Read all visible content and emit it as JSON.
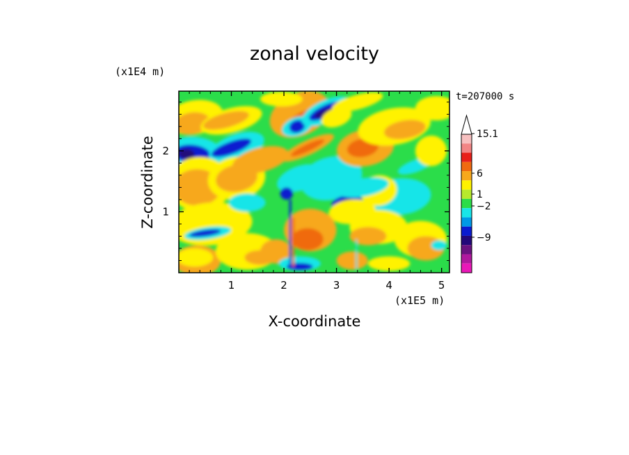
{
  "chart_data": {
    "type": "heatmap",
    "title": "zonal velocity",
    "xlabel": "X-coordinate",
    "ylabel": "Z-coordinate",
    "x_scale_label": "(x1E5 m)",
    "y_scale_label": "(x1E4 m)",
    "time_label": "t=207000 s",
    "xlim": [
      0,
      5.15
    ],
    "ylim": [
      0,
      2.98
    ],
    "x_ticks": [
      "1",
      "2",
      "3",
      "4",
      "5"
    ],
    "y_ticks": [
      "1",
      "2"
    ],
    "colorbar": {
      "labels": [
        "15.1",
        "6",
        "1",
        "−2",
        "−9"
      ],
      "levels": [
        15.1,
        6,
        1,
        -2,
        -9
      ],
      "colors": [
        "#f7c0c0",
        "#f28585",
        "#e8201a",
        "#f06a10",
        "#f7a81c",
        "#fff200",
        "#b7ea2c",
        "#2bdd4a",
        "#19e5e8",
        "#0099e6",
        "#0a1bd0",
        "#22087a",
        "#6a1280",
        "#b0189e",
        "#ea18b8"
      ],
      "extend_top_color": "#ffffff"
    },
    "field_colors": {
      "positive_strong": "#f06a10",
      "positive": "#f7a81c",
      "weak_positive": "#fff200",
      "near_zero": "#2bdd4a",
      "weak_negative": "#19e5e8",
      "negative": "#0a1bd0",
      "negative_strong": "#22087a"
    }
  }
}
